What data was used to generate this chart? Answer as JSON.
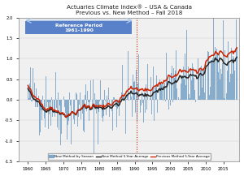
{
  "title_line1": "Actuaries Climate Index® – USA & Canada",
  "title_line2": "Previous vs. New Method – Fall 2018",
  "ylim": [
    -1.5,
    2.0
  ],
  "ref_period_label": "Reference Period\n1961-1990",
  "bar_color": "#7da6c8",
  "new_method_color": "#222222",
  "prev_method_color": "#cc2200",
  "background_color": "#f0f0f0",
  "legend_labels": [
    "New Method by Season",
    "New Method 5-Year Average",
    "Previous Method 5-Year Average"
  ],
  "x_ticks": [
    1960,
    1965,
    1970,
    1975,
    1980,
    1985,
    1990,
    1995,
    2000,
    2005,
    2010,
    2015
  ],
  "yticks": [
    -1.5,
    -1.0,
    -0.5,
    0.0,
    0.5,
    1.0,
    1.5,
    2.0
  ]
}
